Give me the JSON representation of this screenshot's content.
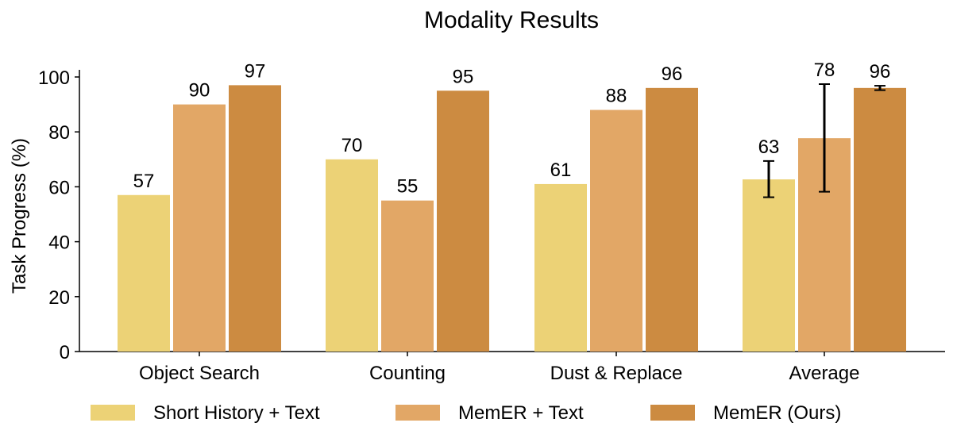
{
  "chart_data": {
    "type": "bar",
    "title": "Modality Results",
    "xlabel": "",
    "ylabel": "Task Progress (%)",
    "ylim": [
      0,
      100
    ],
    "yticks": [
      0,
      20,
      40,
      60,
      80,
      100
    ],
    "categories": [
      "Object Search",
      "Counting",
      "Dust & Replace",
      "Average"
    ],
    "series": [
      {
        "name": "Short History + Text",
        "color": "#ecd276",
        "values": [
          57,
          70,
          61,
          63
        ],
        "plot_values": [
          57,
          70,
          61,
          62.7
        ],
        "errors": [
          null,
          null,
          null,
          [
            56.2,
            69.4
          ]
        ]
      },
      {
        "name": "MemER + Text",
        "color": "#e2a766",
        "values": [
          90,
          55,
          88,
          78
        ],
        "plot_values": [
          90,
          55,
          88,
          77.7
        ],
        "errors": [
          null,
          null,
          null,
          [
            58.2,
            97.4
          ]
        ]
      },
      {
        "name": "MemER (Ours)",
        "color": "#cc8b41",
        "values": [
          97,
          95,
          96,
          96
        ],
        "plot_values": [
          97,
          95,
          96,
          96
        ],
        "errors": [
          null,
          null,
          null,
          [
            95.2,
            96.8
          ]
        ]
      }
    ],
    "legend_position": "bottom",
    "grid": false
  }
}
